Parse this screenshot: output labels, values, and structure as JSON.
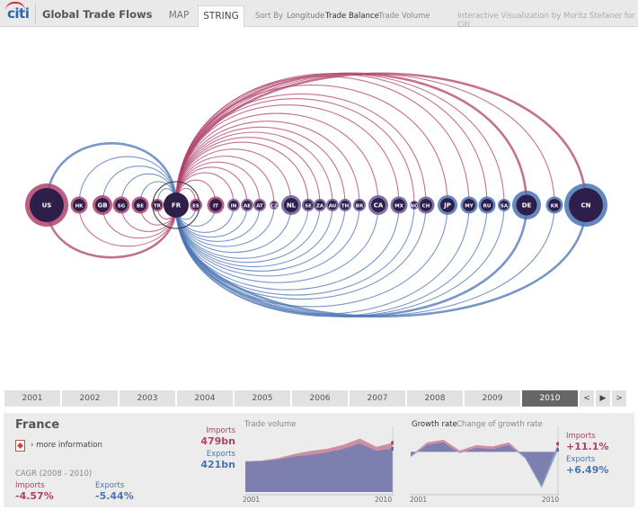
{
  "header": {
    "logo_text": "citi",
    "app_title": "Global Trade Flows",
    "tabs": [
      "MAP",
      "STRING"
    ],
    "active_tab": "STRING",
    "sort_label": "Sort By",
    "sort_options": [
      "Longitude",
      "Trade Balance",
      "Trade Volume"
    ],
    "active_sort": "Trade Balance",
    "credit": "Interactive Visualization by Moritz Stefaner for Citi"
  },
  "colors": {
    "imports": "#b0416b",
    "exports": "#4a74b4",
    "node_fill": "#2e1f4a",
    "selected_year_bg": "#666666"
  },
  "viz": {
    "selected_country": "FR",
    "nodes": [
      {
        "code": "US",
        "ring": "#b0416b",
        "size": "xl"
      },
      {
        "code": "HK",
        "ring": "#b0416b",
        "size": "s"
      },
      {
        "code": "GB",
        "ring": "#b0416b",
        "size": "m"
      },
      {
        "code": "SG",
        "ring": "#b0416b",
        "size": "s"
      },
      {
        "code": "BE",
        "ring": "#b0416b",
        "size": "s"
      },
      {
        "code": "TR",
        "ring": "#b0416b",
        "size": "xs"
      },
      {
        "code": "FR",
        "ring": "#333333",
        "size": "sel"
      },
      {
        "code": "ES",
        "ring": "#b0416b",
        "size": "xs"
      },
      {
        "code": "IT",
        "ring": "#b0416b",
        "size": "s"
      },
      {
        "code": "IN",
        "ring": "#8a5a8f",
        "size": "xs"
      },
      {
        "code": "AE",
        "ring": "#8a5a8f",
        "size": "xs"
      },
      {
        "code": "AT",
        "ring": "#8a5a8f",
        "size": "xs"
      },
      {
        "code": "CZ",
        "ring": "#8a5a8f",
        "size": "xxs"
      },
      {
        "code": "NL",
        "ring": "#6a5a9a",
        "size": "m"
      },
      {
        "code": "SE",
        "ring": "#6a5a9a",
        "size": "xs"
      },
      {
        "code": "ZA",
        "ring": "#6a5a9a",
        "size": "xs"
      },
      {
        "code": "AU",
        "ring": "#6a5a9a",
        "size": "xs"
      },
      {
        "code": "TH",
        "ring": "#6a5a9a",
        "size": "xs"
      },
      {
        "code": "BR",
        "ring": "#6a5a9a",
        "size": "xs"
      },
      {
        "code": "CA",
        "ring": "#6a5a9a",
        "size": "m"
      },
      {
        "code": "MX",
        "ring": "#6a5a9a",
        "size": "s"
      },
      {
        "code": "NO",
        "ring": "#6a5a9a",
        "size": "xxs"
      },
      {
        "code": "CH",
        "ring": "#6a5a9a",
        "size": "s"
      },
      {
        "code": "JP",
        "ring": "#4a74b4",
        "size": "m"
      },
      {
        "code": "MY",
        "ring": "#4a74b4",
        "size": "s"
      },
      {
        "code": "RU",
        "ring": "#4a74b4",
        "size": "s"
      },
      {
        "code": "SA",
        "ring": "#4a74b4",
        "size": "xs"
      },
      {
        "code": "DE",
        "ring": "#4a74b4",
        "size": "l"
      },
      {
        "code": "KR",
        "ring": "#4a74b4",
        "size": "s"
      },
      {
        "code": "CN",
        "ring": "#4a74b4",
        "size": "xl"
      }
    ]
  },
  "timeline": {
    "years": [
      "2001",
      "2002",
      "2003",
      "2004",
      "2005",
      "2006",
      "2007",
      "2008",
      "2009",
      "2010"
    ],
    "selected": "2010",
    "nav": [
      "<",
      "▶",
      ">"
    ]
  },
  "detail": {
    "country": "France",
    "more_info": "› more information",
    "cagr_label": "CAGR (2008 - 2010)",
    "imports_label": "Imports",
    "imports_cagr": "-4.57%",
    "exports_label": "Exports",
    "exports_cagr": "-5.44%",
    "trade_volume": {
      "title": "Trade volume",
      "imports_label": "Imports",
      "imports_value": "479bn",
      "exports_label": "Exports",
      "exports_value": "421bn",
      "x_start": "2001",
      "x_end": "2010",
      "imports_series": [
        300,
        305,
        330,
        370,
        400,
        420,
        460,
        520,
        440,
        479
      ],
      "exports_series": [
        295,
        300,
        315,
        345,
        360,
        385,
        420,
        470,
        400,
        421
      ]
    },
    "growth_rate": {
      "title": "Growth rate",
      "subtitle": "Change of growth rate",
      "imports_label": "Imports",
      "imports_value": "+11.1%",
      "exports_label": "Exports",
      "exports_value": "+6.49%",
      "x_start": "2001",
      "x_end": "2010",
      "imports_series": [
        2,
        12,
        14,
        6,
        10,
        9,
        12,
        1,
        -20,
        11.1
      ],
      "exports_series": [
        1,
        10,
        12,
        4,
        8,
        7,
        10,
        0,
        -22,
        6.49
      ]
    }
  }
}
